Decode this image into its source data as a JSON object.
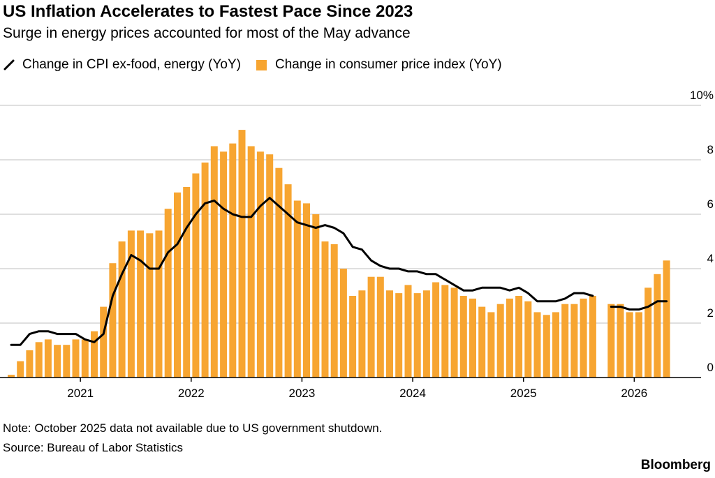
{
  "title": "US Inflation Accelerates to Fastest Pace Since 2023",
  "subtitle": "Surge in energy prices accounted for most of the May advance",
  "note": "Note: October 2025 data not available due to US government shutdown.",
  "source": "Source: Bureau of Labor Statistics",
  "brand": "Bloomberg",
  "colors": {
    "bar": "#f7a531",
    "line": "#000000",
    "grid": "#cccccc"
  },
  "chart_data": {
    "type": "bar",
    "x_start": "2020-05",
    "x_end": "2026-05",
    "xtick_labels": [
      "2021",
      "2022",
      "2023",
      "2024",
      "2025",
      "2026"
    ],
    "ytick_labels": [
      "0",
      "2",
      "4",
      "6",
      "8",
      "10%"
    ],
    "ylim": [
      0,
      10
    ],
    "grid": true,
    "legend_position": "top-left",
    "series": [
      {
        "name": "Change in CPI ex-food, energy (YoY)",
        "type": "line",
        "values": [
          1.2,
          1.2,
          1.6,
          1.7,
          1.7,
          1.6,
          1.6,
          1.6,
          1.4,
          1.3,
          1.6,
          3.0,
          3.8,
          4.5,
          4.3,
          4.0,
          4.0,
          4.6,
          4.9,
          5.5,
          6.0,
          6.4,
          6.5,
          6.2,
          6.0,
          5.9,
          5.9,
          6.3,
          6.6,
          6.3,
          6.0,
          5.7,
          5.6,
          5.5,
          5.6,
          5.5,
          5.3,
          4.8,
          4.7,
          4.3,
          4.1,
          4.0,
          4.0,
          3.9,
          3.9,
          3.8,
          3.8,
          3.6,
          3.4,
          3.2,
          3.2,
          3.3,
          3.3,
          3.3,
          3.2,
          3.3,
          3.1,
          2.8,
          2.8,
          2.8,
          2.9,
          3.1,
          3.1,
          3.0,
          null,
          2.6,
          2.6,
          2.5,
          2.5,
          2.6,
          2.8,
          2.8
        ]
      },
      {
        "name": "Change in consumer price index (YoY)",
        "type": "bar",
        "values": [
          0.1,
          0.6,
          1.0,
          1.3,
          1.4,
          1.2,
          1.2,
          1.4,
          1.4,
          1.7,
          2.6,
          4.2,
          5.0,
          5.4,
          5.4,
          5.3,
          5.4,
          6.2,
          6.8,
          7.0,
          7.5,
          7.9,
          8.5,
          8.3,
          8.6,
          9.1,
          8.5,
          8.3,
          8.2,
          7.7,
          7.1,
          6.5,
          6.4,
          6.0,
          5.0,
          4.9,
          4.0,
          3.0,
          3.2,
          3.7,
          3.7,
          3.2,
          3.1,
          3.4,
          3.1,
          3.2,
          3.5,
          3.4,
          3.3,
          3.0,
          2.9,
          2.6,
          2.4,
          2.7,
          2.9,
          3.0,
          2.8,
          2.4,
          2.3,
          2.4,
          2.7,
          2.7,
          2.9,
          3.0,
          null,
          2.7,
          2.7,
          2.4,
          2.4,
          3.3,
          3.8,
          4.3
        ]
      }
    ]
  }
}
